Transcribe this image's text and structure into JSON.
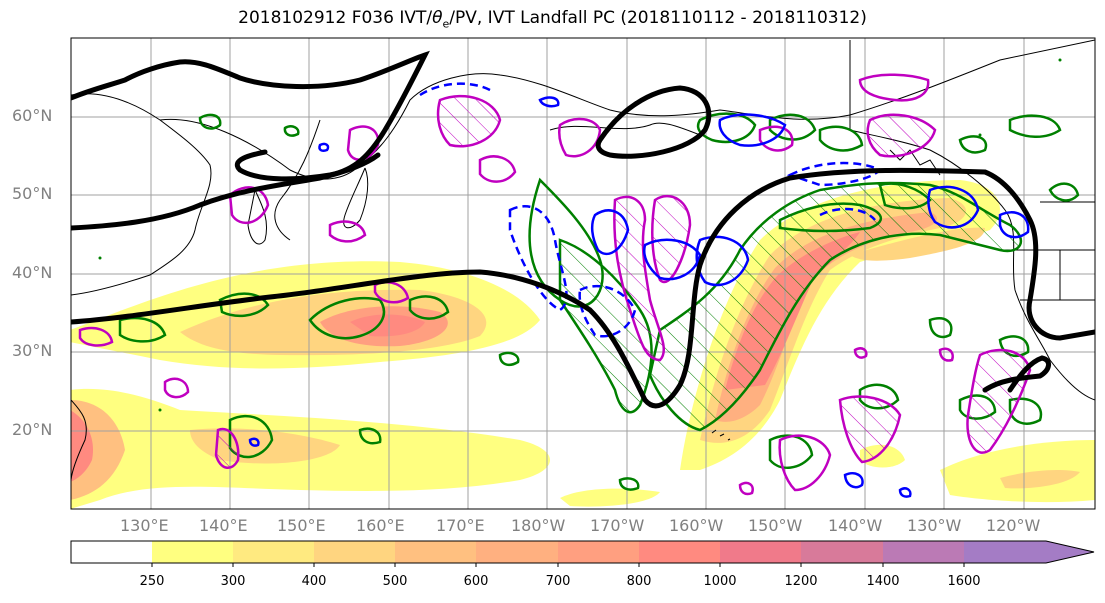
{
  "title": {
    "prefix": "2018102912 F036 IVT/",
    "theta": "θ",
    "theta_sub": "e",
    "suffix": "/PV, IVT Landfall PC (2018110112 - 2018110312)"
  },
  "lat_labels": [
    "60°N",
    "50°N",
    "40°N",
    "30°N",
    "20°N"
  ],
  "lon_labels": [
    "130°E",
    "140°E",
    "150°E",
    "160°E",
    "170°E",
    "180°W",
    "170°W",
    "160°W",
    "150°W",
    "140°W",
    "130°W",
    "120°W"
  ],
  "colorbar": {
    "ticks": [
      "250",
      "300",
      "400",
      "500",
      "600",
      "700",
      "800",
      "1000",
      "1200",
      "1400",
      "1600"
    ],
    "colors": [
      "#ffffff",
      "#ffff80",
      "#ffea80",
      "#ffd580",
      "#ffc080",
      "#ffb080",
      "#ff9f80",
      "#ff8a80",
      "#f07a8a",
      "#d87a9a",
      "#bb7ab5",
      "#a47cc5"
    ]
  },
  "contour_colors": {
    "geopotential": "#000000",
    "theta_e": "#008000",
    "pv": "#0000ff",
    "landfall": "#c000c0"
  }
}
